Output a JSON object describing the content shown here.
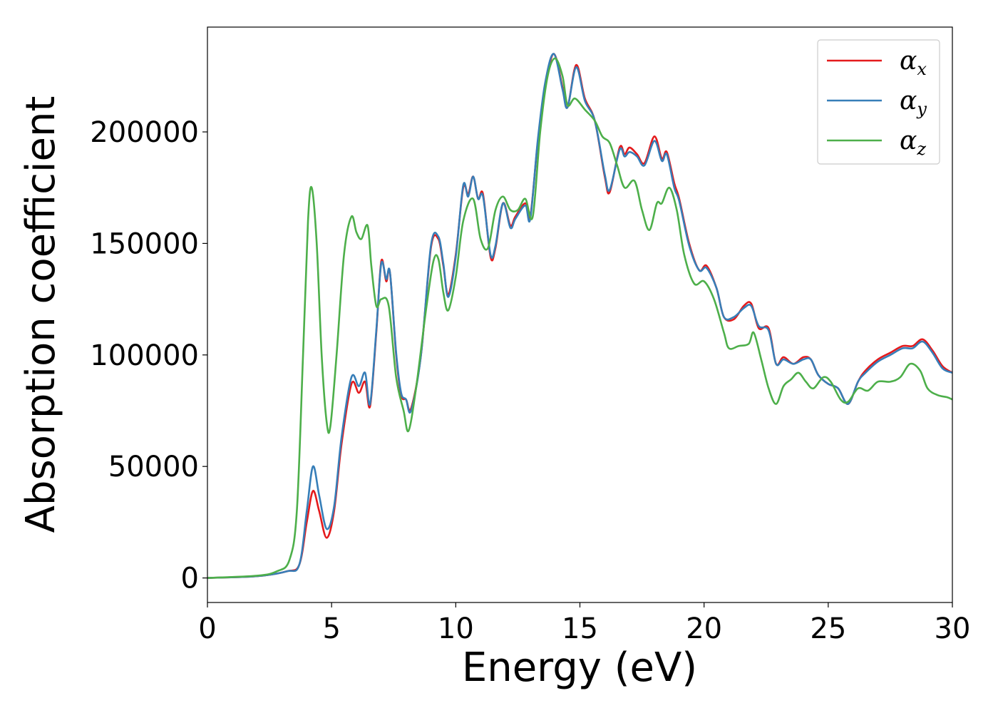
{
  "chart_data": {
    "type": "line",
    "xlabel": "Energy (eV)",
    "ylabel": "Absorption coefficient",
    "xlim": [
      0,
      30
    ],
    "ylim": [
      -11000,
      247000
    ],
    "x_ticks": [
      "0",
      "5",
      "10",
      "15",
      "20",
      "25",
      "30"
    ],
    "y_ticks": [
      "0",
      "50000",
      "100000",
      "150000",
      "200000"
    ],
    "grid": false,
    "legend_position": "top-right",
    "series": [
      {
        "name": "αx",
        "symbol": "α",
        "subscript": "x",
        "color": "#e41a1c",
        "points": [
          [
            0,
            0
          ],
          [
            2,
            800
          ],
          [
            3.2,
            3000
          ],
          [
            3.7,
            6000
          ],
          [
            4.0,
            25000
          ],
          [
            4.25,
            39000
          ],
          [
            4.5,
            30000
          ],
          [
            4.8,
            18000
          ],
          [
            5.1,
            30000
          ],
          [
            5.4,
            60000
          ],
          [
            5.8,
            87000
          ],
          [
            6.1,
            83000
          ],
          [
            6.35,
            88000
          ],
          [
            6.55,
            77000
          ],
          [
            6.8,
            110000
          ],
          [
            7.0,
            142000
          ],
          [
            7.2,
            133000
          ],
          [
            7.35,
            137000
          ],
          [
            7.6,
            100000
          ],
          [
            7.8,
            82000
          ],
          [
            8.0,
            80000
          ],
          [
            8.2,
            76000
          ],
          [
            8.6,
            100000
          ],
          [
            9.0,
            148000
          ],
          [
            9.3,
            152000
          ],
          [
            9.5,
            140000
          ],
          [
            9.7,
            127000
          ],
          [
            10.0,
            145000
          ],
          [
            10.3,
            175000
          ],
          [
            10.5,
            172000
          ],
          [
            10.7,
            180000
          ],
          [
            10.9,
            170000
          ],
          [
            11.1,
            172000
          ],
          [
            11.4,
            144000
          ],
          [
            11.6,
            148000
          ],
          [
            11.9,
            168000
          ],
          [
            12.2,
            158000
          ],
          [
            12.4,
            162000
          ],
          [
            12.8,
            168000
          ],
          [
            13.0,
            162000
          ],
          [
            13.3,
            195000
          ],
          [
            13.6,
            220000
          ],
          [
            13.95,
            235000
          ],
          [
            14.3,
            220000
          ],
          [
            14.5,
            211000
          ],
          [
            14.85,
            230000
          ],
          [
            15.2,
            215000
          ],
          [
            15.6,
            205000
          ],
          [
            16.0,
            180000
          ],
          [
            16.2,
            173000
          ],
          [
            16.6,
            193000
          ],
          [
            16.8,
            190000
          ],
          [
            17.0,
            193000
          ],
          [
            17.3,
            190000
          ],
          [
            17.6,
            186000
          ],
          [
            18.0,
            198000
          ],
          [
            18.3,
            188000
          ],
          [
            18.5,
            191000
          ],
          [
            18.8,
            177000
          ],
          [
            19.0,
            170000
          ],
          [
            19.4,
            150000
          ],
          [
            19.8,
            138000
          ],
          [
            20.1,
            140000
          ],
          [
            20.5,
            130000
          ],
          [
            20.8,
            117000
          ],
          [
            21.2,
            116000
          ],
          [
            21.6,
            122000
          ],
          [
            21.9,
            123000
          ],
          [
            22.2,
            112000
          ],
          [
            22.6,
            112000
          ],
          [
            22.9,
            96000
          ],
          [
            23.2,
            99000
          ],
          [
            23.6,
            96000
          ],
          [
            24.0,
            99000
          ],
          [
            24.3,
            98000
          ],
          [
            24.6,
            91000
          ],
          [
            25.0,
            87000
          ],
          [
            25.4,
            85000
          ],
          [
            25.8,
            78000
          ],
          [
            26.2,
            88000
          ],
          [
            26.5,
            93000
          ],
          [
            27.0,
            98000
          ],
          [
            27.5,
            101000
          ],
          [
            28.0,
            104000
          ],
          [
            28.4,
            104000
          ],
          [
            28.8,
            107000
          ],
          [
            29.2,
            102000
          ],
          [
            29.6,
            95000
          ],
          [
            30.0,
            92000
          ]
        ]
      },
      {
        "name": "αy",
        "symbol": "α",
        "subscript": "y",
        "color": "#377eb8",
        "points": [
          [
            0,
            0
          ],
          [
            2,
            800
          ],
          [
            3.2,
            3000
          ],
          [
            3.7,
            6000
          ],
          [
            4.0,
            30000
          ],
          [
            4.25,
            50000
          ],
          [
            4.5,
            37000
          ],
          [
            4.8,
            22000
          ],
          [
            5.1,
            32000
          ],
          [
            5.4,
            63000
          ],
          [
            5.8,
            90000
          ],
          [
            6.1,
            86000
          ],
          [
            6.35,
            92000
          ],
          [
            6.55,
            78000
          ],
          [
            6.8,
            111000
          ],
          [
            7.0,
            141000
          ],
          [
            7.2,
            134000
          ],
          [
            7.35,
            137000
          ],
          [
            7.6,
            101000
          ],
          [
            7.8,
            83000
          ],
          [
            8.0,
            80000
          ],
          [
            8.2,
            75000
          ],
          [
            8.6,
            100000
          ],
          [
            9.0,
            149000
          ],
          [
            9.3,
            153000
          ],
          [
            9.5,
            141000
          ],
          [
            9.7,
            126000
          ],
          [
            10.0,
            144000
          ],
          [
            10.3,
            176000
          ],
          [
            10.5,
            171000
          ],
          [
            10.7,
            180000
          ],
          [
            10.9,
            170000
          ],
          [
            11.1,
            171000
          ],
          [
            11.4,
            145000
          ],
          [
            11.6,
            149000
          ],
          [
            11.9,
            168000
          ],
          [
            12.2,
            157000
          ],
          [
            12.4,
            161000
          ],
          [
            12.8,
            167000
          ],
          [
            13.0,
            161000
          ],
          [
            13.3,
            196000
          ],
          [
            13.6,
            222000
          ],
          [
            13.95,
            235000
          ],
          [
            14.3,
            219000
          ],
          [
            14.5,
            211000
          ],
          [
            14.85,
            229000
          ],
          [
            15.2,
            214000
          ],
          [
            15.6,
            205000
          ],
          [
            16.0,
            181000
          ],
          [
            16.2,
            174000
          ],
          [
            16.6,
            192000
          ],
          [
            16.8,
            189000
          ],
          [
            17.0,
            191000
          ],
          [
            17.3,
            189000
          ],
          [
            17.6,
            185000
          ],
          [
            18.0,
            196000
          ],
          [
            18.3,
            187000
          ],
          [
            18.5,
            190000
          ],
          [
            18.8,
            175000
          ],
          [
            19.0,
            169000
          ],
          [
            19.4,
            149000
          ],
          [
            19.8,
            138000
          ],
          [
            20.1,
            139000
          ],
          [
            20.5,
            130000
          ],
          [
            20.8,
            117000
          ],
          [
            21.2,
            117000
          ],
          [
            21.6,
            121000
          ],
          [
            21.9,
            122000
          ],
          [
            22.2,
            113000
          ],
          [
            22.6,
            111000
          ],
          [
            22.9,
            96000
          ],
          [
            23.2,
            98000
          ],
          [
            23.6,
            96000
          ],
          [
            24.0,
            98000
          ],
          [
            24.3,
            98000
          ],
          [
            24.6,
            91000
          ],
          [
            25.0,
            87000
          ],
          [
            25.4,
            85000
          ],
          [
            25.8,
            78000
          ],
          [
            26.2,
            88000
          ],
          [
            26.5,
            92000
          ],
          [
            27.0,
            97000
          ],
          [
            27.5,
            100000
          ],
          [
            28.0,
            103000
          ],
          [
            28.4,
            103000
          ],
          [
            28.8,
            106000
          ],
          [
            29.2,
            101000
          ],
          [
            29.6,
            94000
          ],
          [
            30.0,
            92000
          ]
        ]
      },
      {
        "name": "αz",
        "symbol": "α",
        "subscript": "z",
        "color": "#4daf4a",
        "points": [
          [
            0,
            0
          ],
          [
            2,
            1000
          ],
          [
            2.8,
            3000
          ],
          [
            3.3,
            8000
          ],
          [
            3.6,
            30000
          ],
          [
            3.85,
            100000
          ],
          [
            4.05,
            160000
          ],
          [
            4.2,
            175000
          ],
          [
            4.4,
            150000
          ],
          [
            4.6,
            100000
          ],
          [
            4.8,
            70000
          ],
          [
            4.95,
            68000
          ],
          [
            5.2,
            100000
          ],
          [
            5.5,
            145000
          ],
          [
            5.8,
            162000
          ],
          [
            6.0,
            155000
          ],
          [
            6.2,
            152000
          ],
          [
            6.45,
            158000
          ],
          [
            6.6,
            140000
          ],
          [
            6.8,
            122000
          ],
          [
            7.0,
            125000
          ],
          [
            7.3,
            122000
          ],
          [
            7.6,
            90000
          ],
          [
            7.9,
            75000
          ],
          [
            8.1,
            66000
          ],
          [
            8.4,
            85000
          ],
          [
            8.8,
            120000
          ],
          [
            9.1,
            142000
          ],
          [
            9.3,
            143000
          ],
          [
            9.5,
            128000
          ],
          [
            9.7,
            120000
          ],
          [
            10.0,
            135000
          ],
          [
            10.3,
            160000
          ],
          [
            10.7,
            170000
          ],
          [
            11.0,
            152000
          ],
          [
            11.3,
            148000
          ],
          [
            11.6,
            165000
          ],
          [
            11.9,
            171000
          ],
          [
            12.2,
            165000
          ],
          [
            12.5,
            165000
          ],
          [
            12.8,
            170000
          ],
          [
            13.1,
            162000
          ],
          [
            13.4,
            200000
          ],
          [
            13.7,
            225000
          ],
          [
            14.0,
            233000
          ],
          [
            14.3,
            225000
          ],
          [
            14.5,
            212000
          ],
          [
            14.8,
            215000
          ],
          [
            15.2,
            210000
          ],
          [
            15.6,
            205000
          ],
          [
            15.9,
            198000
          ],
          [
            16.2,
            195000
          ],
          [
            16.5,
            185000
          ],
          [
            16.8,
            175000
          ],
          [
            17.2,
            178000
          ],
          [
            17.5,
            165000
          ],
          [
            17.8,
            156000
          ],
          [
            18.1,
            168000
          ],
          [
            18.3,
            168000
          ],
          [
            18.6,
            175000
          ],
          [
            18.9,
            165000
          ],
          [
            19.2,
            145000
          ],
          [
            19.6,
            132000
          ],
          [
            20.0,
            133000
          ],
          [
            20.4,
            125000
          ],
          [
            20.8,
            110000
          ],
          [
            21.0,
            103000
          ],
          [
            21.4,
            104000
          ],
          [
            21.8,
            105000
          ],
          [
            22.0,
            110000
          ],
          [
            22.3,
            98000
          ],
          [
            22.6,
            85000
          ],
          [
            22.9,
            78000
          ],
          [
            23.2,
            86000
          ],
          [
            23.5,
            89000
          ],
          [
            23.8,
            92000
          ],
          [
            24.1,
            88000
          ],
          [
            24.4,
            85000
          ],
          [
            24.8,
            90000
          ],
          [
            25.1,
            88000
          ],
          [
            25.5,
            80000
          ],
          [
            25.8,
            79000
          ],
          [
            26.2,
            85000
          ],
          [
            26.6,
            84000
          ],
          [
            27.0,
            88000
          ],
          [
            27.5,
            88000
          ],
          [
            27.9,
            90000
          ],
          [
            28.3,
            96000
          ],
          [
            28.7,
            93000
          ],
          [
            29.0,
            85000
          ],
          [
            29.4,
            82000
          ],
          [
            29.8,
            81000
          ],
          [
            30.0,
            80000
          ]
        ]
      }
    ]
  }
}
